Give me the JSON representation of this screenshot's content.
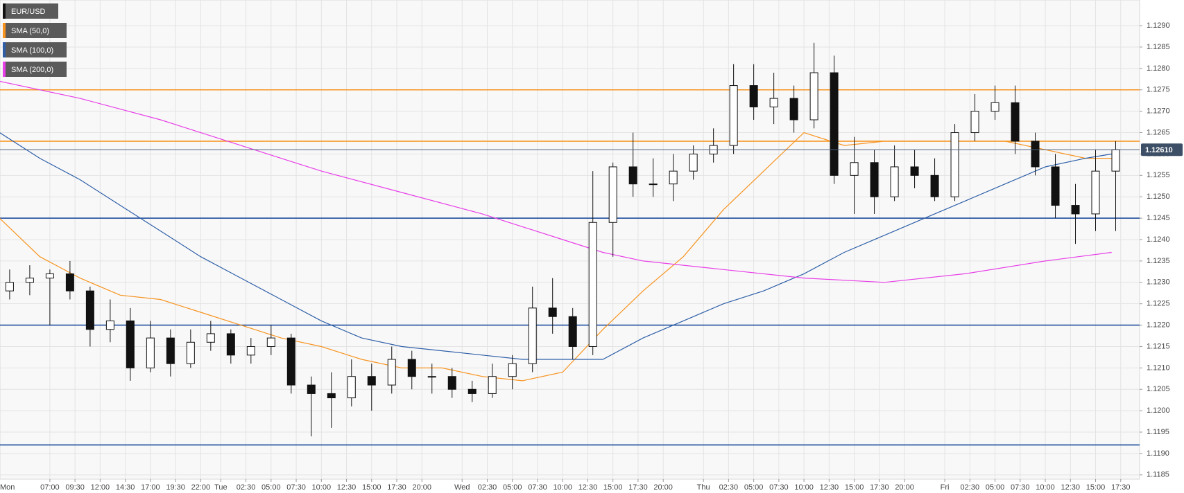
{
  "chart_data": {
    "type": "candlestick",
    "candles": {
      "name": "EUR/USD",
      "x": [
        3,
        5,
        7,
        9,
        11,
        13,
        15,
        17,
        19,
        21,
        23,
        25,
        27,
        29,
        31,
        33,
        35,
        37,
        39,
        41,
        43,
        45,
        47,
        49,
        51,
        53,
        55,
        57,
        59,
        61,
        63,
        65,
        67,
        69,
        71,
        73,
        75,
        77,
        79,
        81,
        83,
        85,
        87,
        89,
        91,
        93,
        95,
        97,
        99,
        101,
        103,
        105,
        107,
        109,
        111,
        113
      ],
      "open": [
        1.1228,
        1.123,
        1.1231,
        1.1232,
        1.1228,
        1.1219,
        1.1221,
        1.121,
        1.1217,
        1.1211,
        1.1216,
        1.1218,
        1.1213,
        1.1215,
        1.1217,
        1.1206,
        1.1204,
        1.1203,
        1.1208,
        1.1206,
        1.1212,
        1.1208,
        1.1208,
        1.1205,
        1.1204,
        1.1208,
        1.1211,
        1.1224,
        1.1222,
        1.1215,
        1.1244,
        1.1257,
        1.1253,
        1.1253,
        1.1256,
        1.126,
        1.1262,
        1.1276,
        1.1271,
        1.1273,
        1.1268,
        1.1279,
        1.1255,
        1.1258,
        1.125,
        1.1257,
        1.1255,
        1.125,
        1.1265,
        1.127,
        1.1272,
        1.1263,
        1.1257,
        1.1248,
        1.1246,
        1.1256
      ],
      "high": [
        1.1233,
        1.1234,
        1.1233,
        1.1235,
        1.1229,
        1.1226,
        1.1224,
        1.1221,
        1.1219,
        1.1219,
        1.1221,
        1.1219,
        1.1217,
        1.122,
        1.1218,
        1.1208,
        1.1209,
        1.1212,
        1.1211,
        1.1215,
        1.1214,
        1.1211,
        1.121,
        1.1207,
        1.1211,
        1.1213,
        1.1229,
        1.1231,
        1.1224,
        1.1256,
        1.1258,
        1.1265,
        1.1259,
        1.126,
        1.1262,
        1.1266,
        1.1281,
        1.1281,
        1.1279,
        1.1276,
        1.1286,
        1.1283,
        1.1264,
        1.1261,
        1.1262,
        1.1261,
        1.1259,
        1.1267,
        1.1274,
        1.1276,
        1.1276,
        1.1265,
        1.126,
        1.1253,
        1.1261,
        1.1263
      ],
      "low": [
        1.1226,
        1.1227,
        1.122,
        1.1226,
        1.1215,
        1.1216,
        1.1207,
        1.1209,
        1.1208,
        1.121,
        1.1214,
        1.1211,
        1.1211,
        1.1213,
        1.1204,
        1.1194,
        1.1196,
        1.1201,
        1.12,
        1.1204,
        1.1205,
        1.1204,
        1.1203,
        1.1202,
        1.1203,
        1.1205,
        1.1209,
        1.1218,
        1.1212,
        1.1213,
        1.1236,
        1.125,
        1.125,
        1.1249,
        1.1254,
        1.1258,
        1.126,
        1.1268,
        1.1267,
        1.1265,
        1.1266,
        1.1253,
        1.1246,
        1.1246,
        1.1249,
        1.1252,
        1.1249,
        1.1249,
        1.1263,
        1.1268,
        1.126,
        1.1255,
        1.1245,
        1.1239,
        1.1242,
        1.1242
      ],
      "close": [
        1.123,
        1.1231,
        1.1232,
        1.1228,
        1.1219,
        1.1221,
        1.121,
        1.1217,
        1.1211,
        1.1216,
        1.1218,
        1.1213,
        1.1215,
        1.1217,
        1.1206,
        1.1204,
        1.1203,
        1.1208,
        1.1206,
        1.1212,
        1.1208,
        1.1208,
        1.1205,
        1.1204,
        1.1208,
        1.1211,
        1.1224,
        1.1222,
        1.1215,
        1.1244,
        1.1257,
        1.1253,
        1.1253,
        1.1256,
        1.126,
        1.1262,
        1.1276,
        1.1271,
        1.1273,
        1.1268,
        1.1279,
        1.1255,
        1.1258,
        1.125,
        1.1257,
        1.1255,
        1.125,
        1.1265,
        1.127,
        1.1272,
        1.1263,
        1.1257,
        1.1248,
        1.1246,
        1.1256,
        1.1261
      ]
    },
    "series": [
      {
        "name": "SMA (50,0)",
        "color": "#f7931e",
        "x": [
          2,
          6,
          10,
          14,
          18,
          22,
          26,
          30,
          34,
          38,
          42,
          46,
          50,
          54,
          58,
          62,
          66,
          70,
          74,
          78,
          82,
          86,
          90,
          94,
          98,
          102,
          106,
          110,
          112.6
        ],
        "values": [
          1.1245,
          1.1236,
          1.1231,
          1.1227,
          1.1226,
          1.1223,
          1.122,
          1.1217,
          1.1215,
          1.1212,
          1.121,
          1.121,
          1.1208,
          1.1207,
          1.1209,
          1.1219,
          1.1228,
          1.1236,
          1.1247,
          1.1256,
          1.1265,
          1.1262,
          1.1263,
          1.1263,
          1.1263,
          1.1263,
          1.1261,
          1.1259,
          1.1259
        ]
      },
      {
        "name": "SMA (100,0)",
        "color": "#2e5fa8",
        "x": [
          2,
          6,
          10,
          14,
          18,
          22,
          26,
          30,
          34,
          38,
          42,
          46,
          50,
          54,
          58,
          62,
          66,
          70,
          74,
          78,
          82,
          86,
          90,
          94,
          98,
          102,
          106,
          110,
          112.6
        ],
        "values": [
          1.1265,
          1.1259,
          1.1254,
          1.1248,
          1.1242,
          1.1236,
          1.1231,
          1.1226,
          1.1221,
          1.1217,
          1.1215,
          1.1214,
          1.1213,
          1.1212,
          1.1212,
          1.1212,
          1.1217,
          1.1221,
          1.1225,
          1.1228,
          1.1232,
          1.1237,
          1.1241,
          1.1245,
          1.1249,
          1.1253,
          1.1257,
          1.1259,
          1.126
        ]
      },
      {
        "name": "SMA (200,0)",
        "color": "#e83ee8",
        "x": [
          2,
          10,
          18,
          26,
          34,
          42,
          50,
          58,
          62,
          66,
          74,
          82,
          90,
          98,
          106,
          112.6
        ],
        "values": [
          1.1277,
          1.1273,
          1.1268,
          1.1262,
          1.1256,
          1.1251,
          1.1246,
          1.124,
          1.1237,
          1.1235,
          1.1233,
          1.1231,
          1.123,
          1.1232,
          1.1235,
          1.1237
        ]
      }
    ],
    "levels": [
      {
        "value": 1.1275,
        "color": "#f7931e"
      },
      {
        "value": 1.1263,
        "color": "#f7931e"
      },
      {
        "value": 1.1245,
        "color": "#1f4e9c"
      },
      {
        "value": 1.122,
        "color": "#1f4e9c"
      },
      {
        "value": 1.1192,
        "color": "#1f4e9c"
      }
    ],
    "last_price": {
      "value": 1.1261,
      "label": "1.12610"
    },
    "xlim": [
      2.04,
      115.38
    ],
    "ylim": [
      1.1184,
      1.1296
    ],
    "xticks": [
      {
        "value": 0,
        "label": "Mon"
      },
      {
        "value": 7,
        "label": "07:00"
      },
      {
        "value": 9.5,
        "label": "09:30"
      },
      {
        "value": 12,
        "label": "12:00"
      },
      {
        "value": 14.5,
        "label": "14:30"
      },
      {
        "value": 17,
        "label": "17:00"
      },
      {
        "value": 19.5,
        "label": "19:30"
      },
      {
        "value": 22,
        "label": "22:00"
      },
      {
        "value": 24,
        "label": "Tue"
      },
      {
        "value": 26.5,
        "label": "02:30"
      },
      {
        "value": 29,
        "label": "05:00"
      },
      {
        "value": 31.5,
        "label": "07:30"
      },
      {
        "value": 34,
        "label": "10:00"
      },
      {
        "value": 36.5,
        "label": "12:30"
      },
      {
        "value": 39,
        "label": "15:00"
      },
      {
        "value": 41.5,
        "label": "17:30"
      },
      {
        "value": 44,
        "label": "20:00"
      },
      {
        "value": 48,
        "label": "Wed"
      },
      {
        "value": 50.5,
        "label": "02:30"
      },
      {
        "value": 53,
        "label": "05:00"
      },
      {
        "value": 55.5,
        "label": "07:30"
      },
      {
        "value": 58,
        "label": "10:00"
      },
      {
        "value": 60.5,
        "label": "12:30"
      },
      {
        "value": 63,
        "label": "15:00"
      },
      {
        "value": 65.5,
        "label": "17:30"
      },
      {
        "value": 68,
        "label": "20:00"
      },
      {
        "value": 72,
        "label": "Thu"
      },
      {
        "value": 74.5,
        "label": "02:30"
      },
      {
        "value": 77,
        "label": "05:00"
      },
      {
        "value": 79.5,
        "label": "07:30"
      },
      {
        "value": 82,
        "label": "10:00"
      },
      {
        "value": 84.5,
        "label": "12:30"
      },
      {
        "value": 87,
        "label": "15:00"
      },
      {
        "value": 89.5,
        "label": "17:30"
      },
      {
        "value": 92,
        "label": "20:00"
      },
      {
        "value": 96,
        "label": "Fri"
      },
      {
        "value": 98.5,
        "label": "02:30"
      },
      {
        "value": 101,
        "label": "05:00"
      },
      {
        "value": 103.5,
        "label": "07:30"
      },
      {
        "value": 106,
        "label": "10:00"
      },
      {
        "value": 108.5,
        "label": "12:30"
      },
      {
        "value": 111,
        "label": "15:00"
      },
      {
        "value": 113.5,
        "label": "17:30"
      }
    ],
    "yticks": [
      {
        "value": 1.1185,
        "label": "1.1185"
      },
      {
        "value": 1.119,
        "label": "1.1190"
      },
      {
        "value": 1.1195,
        "label": "1.1195"
      },
      {
        "value": 1.12,
        "label": "1.1200"
      },
      {
        "value": 1.1205,
        "label": "1.1205"
      },
      {
        "value": 1.121,
        "label": "1.1210"
      },
      {
        "value": 1.1215,
        "label": "1.1215"
      },
      {
        "value": 1.122,
        "label": "1.1220"
      },
      {
        "value": 1.1225,
        "label": "1.1225"
      },
      {
        "value": 1.123,
        "label": "1.1230"
      },
      {
        "value": 1.1235,
        "label": "1.1235"
      },
      {
        "value": 1.124,
        "label": "1.1240"
      },
      {
        "value": 1.1245,
        "label": "1.1245"
      },
      {
        "value": 1.125,
        "label": "1.1250"
      },
      {
        "value": 1.1255,
        "label": "1.1255"
      },
      {
        "value": 1.126,
        "label": "1.1260"
      },
      {
        "value": 1.1265,
        "label": "1.1265"
      },
      {
        "value": 1.127,
        "label": "1.1270"
      },
      {
        "value": 1.1275,
        "label": "1.1275"
      },
      {
        "value": 1.128,
        "label": "1.1280"
      },
      {
        "value": 1.1285,
        "label": "1.1285"
      },
      {
        "value": 1.129,
        "label": "1.1290"
      }
    ],
    "grid": true
  }
}
